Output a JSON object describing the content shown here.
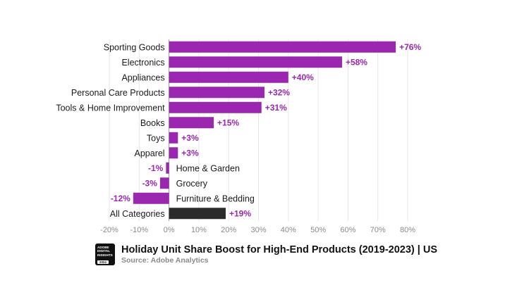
{
  "chart_data": {
    "type": "bar",
    "orientation": "horizontal",
    "title": "Holiday Unit Share Boost for High-End Products (2019-2023) | US",
    "source": "Source: Adobe Analytics",
    "categories": [
      "Sporting Goods",
      "Electronics",
      "Appliances",
      "Personal Care Products",
      "Tools & Home Improvement",
      "Books",
      "Toys",
      "Apparel",
      "Home & Garden",
      "Grocery",
      "Furniture & Bedding",
      "All Categories"
    ],
    "values": [
      76,
      58,
      40,
      32,
      31,
      15,
      3,
      3,
      -1,
      -3,
      -12,
      19
    ],
    "data_labels": [
      "+76%",
      "+58%",
      "+40%",
      "+32%",
      "+31%",
      "+15%",
      "+3%",
      "+3%",
      "-1%",
      "-3%",
      "-12%",
      "+19%"
    ],
    "xlim": [
      -20,
      80
    ],
    "xticks": [
      -20,
      -10,
      0,
      10,
      20,
      30,
      40,
      50,
      60,
      70,
      80
    ],
    "xtick_labels": [
      "-20%",
      "-10%",
      "0%",
      "10%",
      "20%",
      "30%",
      "40%",
      "50%",
      "60%",
      "70%",
      "80%"
    ],
    "grid": "vertical",
    "colors": {
      "bar": "#9b27b0",
      "highlight": "#2b2b2b",
      "label": "#9b27b0"
    },
    "highlight_category": "All Categories"
  },
  "logo": {
    "lines": [
      "ADOBE",
      "DIGITAL",
      "INSIGHTS"
    ],
    "year": "2024"
  }
}
